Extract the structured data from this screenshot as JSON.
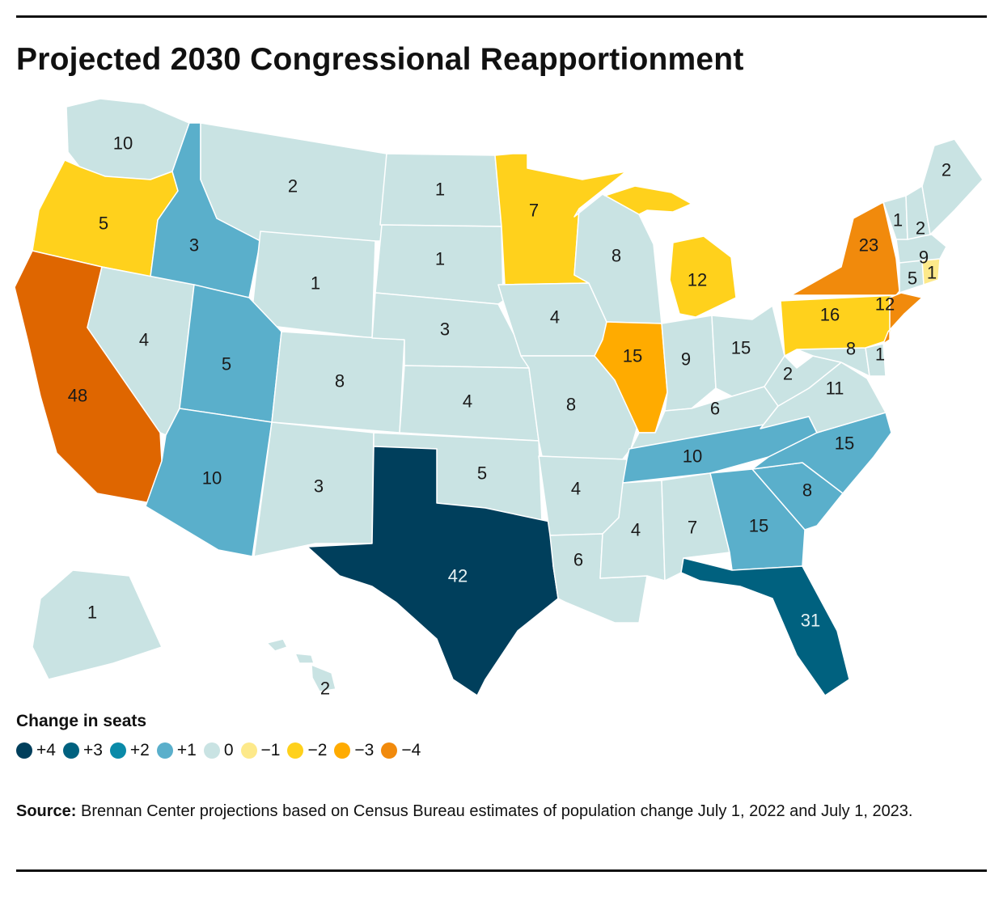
{
  "title": "Projected 2030 Congressional Reapportionment",
  "colors": {
    "plus4": "#003f5c",
    "plus3": "#00617f",
    "plus2": "#0a8aa8",
    "plus1": "#5aafcb",
    "zero": "#c9e3e3",
    "minus1": "#fde98a",
    "minus2": "#ffd11c",
    "minus3": "#ffab00",
    "minus4": "#f18a0c",
    "minus5": "#df6600"
  },
  "legend": {
    "title": "Change in seats",
    "items": [
      {
        "label": "+4",
        "color": "#003f5c"
      },
      {
        "label": "+3",
        "color": "#00617f"
      },
      {
        "label": "+2",
        "color": "#0a8aa8"
      },
      {
        "label": "+1",
        "color": "#5aafcb"
      },
      {
        "label": "0",
        "color": "#c9e3e3"
      },
      {
        "label": "−1",
        "color": "#fde98a"
      },
      {
        "label": "−2",
        "color": "#ffd11c"
      },
      {
        "label": "−3",
        "color": "#ffab00"
      },
      {
        "label": "−4",
        "color": "#f18a0c"
      }
    ]
  },
  "states": [
    {
      "id": "WA",
      "seats": "10",
      "change": "zero"
    },
    {
      "id": "OR",
      "seats": "5",
      "change": "minus2"
    },
    {
      "id": "CA",
      "seats": "48",
      "change": "minus5"
    },
    {
      "id": "ID",
      "seats": "3",
      "change": "plus1"
    },
    {
      "id": "NV",
      "seats": "4",
      "change": "zero"
    },
    {
      "id": "MT",
      "seats": "2",
      "change": "zero"
    },
    {
      "id": "WY",
      "seats": "1",
      "change": "zero"
    },
    {
      "id": "UT",
      "seats": "5",
      "change": "plus1"
    },
    {
      "id": "AZ",
      "seats": "10",
      "change": "plus1"
    },
    {
      "id": "CO",
      "seats": "8",
      "change": "zero"
    },
    {
      "id": "NM",
      "seats": "3",
      "change": "zero"
    },
    {
      "id": "ND",
      "seats": "1",
      "change": "zero"
    },
    {
      "id": "SD",
      "seats": "1",
      "change": "zero"
    },
    {
      "id": "NE",
      "seats": "3",
      "change": "zero"
    },
    {
      "id": "KS",
      "seats": "4",
      "change": "zero"
    },
    {
      "id": "OK",
      "seats": "5",
      "change": "zero"
    },
    {
      "id": "TX",
      "seats": "42",
      "change": "plus4"
    },
    {
      "id": "MN",
      "seats": "7",
      "change": "minus2"
    },
    {
      "id": "IA",
      "seats": "4",
      "change": "zero"
    },
    {
      "id": "MO",
      "seats": "8",
      "change": "zero"
    },
    {
      "id": "AR",
      "seats": "4",
      "change": "zero"
    },
    {
      "id": "LA",
      "seats": "6",
      "change": "zero"
    },
    {
      "id": "WI",
      "seats": "8",
      "change": "zero"
    },
    {
      "id": "IL",
      "seats": "15",
      "change": "minus3"
    },
    {
      "id": "MI",
      "seats": "12",
      "change": "minus2"
    },
    {
      "id": "IN",
      "seats": "9",
      "change": "zero"
    },
    {
      "id": "OH",
      "seats": "15",
      "change": "zero"
    },
    {
      "id": "KY",
      "seats": "6",
      "change": "zero"
    },
    {
      "id": "TN",
      "seats": "10",
      "change": "plus1"
    },
    {
      "id": "MS",
      "seats": "4",
      "change": "zero"
    },
    {
      "id": "AL",
      "seats": "7",
      "change": "zero"
    },
    {
      "id": "GA",
      "seats": "15",
      "change": "plus1"
    },
    {
      "id": "FL",
      "seats": "31",
      "change": "plus3"
    },
    {
      "id": "SC",
      "seats": "8",
      "change": "plus1"
    },
    {
      "id": "NC",
      "seats": "15",
      "change": "plus1"
    },
    {
      "id": "VA",
      "seats": "11",
      "change": "zero"
    },
    {
      "id": "WV",
      "seats": "2",
      "change": "zero"
    },
    {
      "id": "MD",
      "seats": "8",
      "change": "zero"
    },
    {
      "id": "DE",
      "seats": "1",
      "change": "zero"
    },
    {
      "id": "PA",
      "seats": "16",
      "change": "minus2"
    },
    {
      "id": "NY",
      "seats": "23",
      "change": "minus4"
    },
    {
      "id": "NJ",
      "seats": "12",
      "change": "minus4"
    },
    {
      "id": "CT",
      "seats": "5",
      "change": "zero"
    },
    {
      "id": "RI",
      "seats": "1",
      "change": "minus1"
    },
    {
      "id": "MA",
      "seats": "9",
      "change": "zero"
    },
    {
      "id": "VT",
      "seats": "1",
      "change": "zero"
    },
    {
      "id": "NH",
      "seats": "2",
      "change": "zero"
    },
    {
      "id": "ME",
      "seats": "2",
      "change": "zero"
    },
    {
      "id": "AK",
      "seats": "1",
      "change": "zero"
    },
    {
      "id": "HI",
      "seats": "2",
      "change": "zero"
    }
  ],
  "source": {
    "label": "Source:",
    "text": "Brennan Center projections based on Census Bureau estimates of population change July 1, 2022 and July 1, 2023."
  }
}
